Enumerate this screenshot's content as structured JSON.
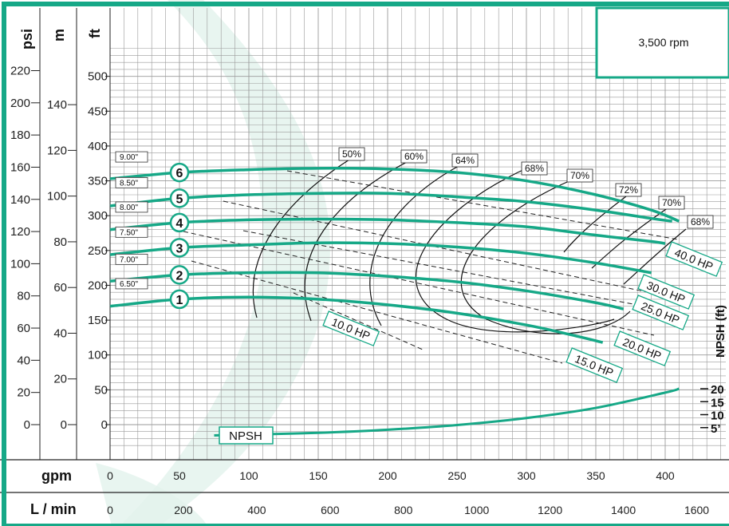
{
  "chart_data": {
    "type": "line",
    "speed_label": "3,500 rpm",
    "x_primary": {
      "label": "gpm",
      "ticks": [
        0,
        50,
        100,
        150,
        200,
        250,
        300,
        350,
        400
      ],
      "range": [
        0,
        430
      ]
    },
    "x_secondary": {
      "label": "L / min",
      "ticks": [
        0,
        200,
        400,
        600,
        800,
        1000,
        1200,
        1400,
        1600
      ]
    },
    "y_ft": {
      "label": "ft",
      "ticks": [
        0,
        50,
        100,
        150,
        200,
        250,
        300,
        350,
        400,
        450,
        500
      ],
      "range": [
        -35,
        525
      ]
    },
    "y_psi": {
      "label": "psi",
      "ticks": [
        0,
        20,
        40,
        60,
        80,
        100,
        120,
        140,
        160,
        180,
        200,
        220
      ]
    },
    "y_m": {
      "label": "m",
      "ticks": [
        0,
        20,
        40,
        60,
        80,
        100,
        120,
        140
      ]
    },
    "y_npsh": {
      "label": "NPSH (ft)",
      "ticks": [
        "20",
        "15",
        "10",
        "5’"
      ]
    },
    "series": [
      {
        "id": "1",
        "impeller": "6.50\"",
        "points": [
          [
            0,
            170
          ],
          [
            50,
            180
          ],
          [
            100,
            183
          ],
          [
            150,
            180
          ],
          [
            200,
            172
          ],
          [
            250,
            160
          ],
          [
            300,
            143
          ],
          [
            330,
            130
          ],
          [
            355,
            118
          ]
        ]
      },
      {
        "id": "2",
        "impeller": "7.00\"",
        "points": [
          [
            0,
            206
          ],
          [
            50,
            215
          ],
          [
            100,
            218
          ],
          [
            150,
            218
          ],
          [
            200,
            213
          ],
          [
            250,
            205
          ],
          [
            300,
            192
          ],
          [
            350,
            175
          ],
          [
            370,
            166
          ]
        ]
      },
      {
        "id": "3",
        "impeller": "7.50\"",
        "points": [
          [
            0,
            244
          ],
          [
            50,
            254
          ],
          [
            100,
            258
          ],
          [
            150,
            261
          ],
          [
            200,
            260
          ],
          [
            250,
            255
          ],
          [
            300,
            246
          ],
          [
            350,
            232
          ],
          [
            390,
            218
          ]
        ]
      },
      {
        "id": "4",
        "impeller": "8.00\"",
        "points": [
          [
            0,
            280
          ],
          [
            50,
            290
          ],
          [
            100,
            294
          ],
          [
            150,
            295
          ],
          [
            200,
            294
          ],
          [
            250,
            290
          ],
          [
            300,
            284
          ],
          [
            350,
            272
          ],
          [
            390,
            263
          ],
          [
            400,
            260
          ]
        ]
      },
      {
        "id": "5",
        "impeller": "8.50\"",
        "points": [
          [
            0,
            314
          ],
          [
            50,
            325
          ],
          [
            100,
            330
          ],
          [
            150,
            332
          ],
          [
            200,
            332
          ],
          [
            250,
            327
          ],
          [
            300,
            320
          ],
          [
            350,
            308
          ],
          [
            390,
            296
          ],
          [
            405,
            292
          ]
        ]
      },
      {
        "id": "6",
        "impeller": "9.00\"",
        "points": [
          [
            0,
            353
          ],
          [
            50,
            362
          ],
          [
            100,
            366
          ],
          [
            150,
            368
          ],
          [
            200,
            367
          ],
          [
            250,
            362
          ],
          [
            300,
            350
          ],
          [
            350,
            330
          ],
          [
            390,
            308
          ],
          [
            410,
            292
          ]
        ]
      }
    ],
    "efficiency_labels": [
      "50%",
      "60%",
      "64%",
      "68%",
      "70%",
      "72%",
      "70%",
      "68%"
    ],
    "horsepower_labels": [
      "10.0 HP",
      "15.0 HP",
      "20.0 HP",
      "25.0 HP",
      "30.0 HP",
      "40.0 HP"
    ],
    "npsh_curve": {
      "label": "NPSH",
      "points_ft": [
        [
          75,
          2
        ],
        [
          100,
          2.3
        ],
        [
          150,
          3
        ],
        [
          200,
          4.2
        ],
        [
          250,
          6
        ],
        [
          300,
          8.7
        ],
        [
          350,
          12.6
        ],
        [
          400,
          18.5
        ],
        [
          410,
          20
        ]
      ]
    }
  }
}
